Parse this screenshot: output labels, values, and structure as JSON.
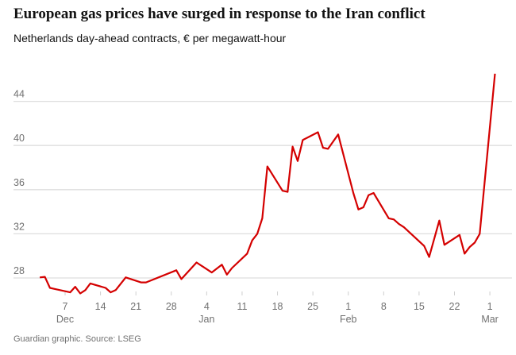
{
  "title": "European gas prices have surged in response to the Iran conflict",
  "subtitle": "Netherlands day-ahead contracts, € per megawatt-hour",
  "footer": "Guardian graphic. Source: LSEG",
  "colors": {
    "line": "#d40000",
    "grid": "#dedede",
    "tick_text": "#707070"
  },
  "chart_data": {
    "type": "line",
    "title": "European gas prices have surged in response to the Iran conflict",
    "subtitle": "Netherlands day-ahead contracts, € per megawatt-hour",
    "xlabel": "",
    "ylabel": "",
    "ylim": [
      26,
      46.5
    ],
    "y_ticks": [
      28,
      32,
      36,
      40,
      44
    ],
    "x_ticks": [
      {
        "date": "Dec 7",
        "label": "7",
        "month": "Dec"
      },
      {
        "date": "Dec 14",
        "label": "14",
        "month": ""
      },
      {
        "date": "Dec 21",
        "label": "21",
        "month": ""
      },
      {
        "date": "Dec 28",
        "label": "28",
        "month": ""
      },
      {
        "date": "Jan 4",
        "label": "4",
        "month": "Jan"
      },
      {
        "date": "Jan 11",
        "label": "11",
        "month": ""
      },
      {
        "date": "Jan 18",
        "label": "18",
        "month": ""
      },
      {
        "date": "Jan 25",
        "label": "25",
        "month": ""
      },
      {
        "date": "Feb 1",
        "label": "1",
        "month": "Feb"
      },
      {
        "date": "Feb 8",
        "label": "8",
        "month": ""
      },
      {
        "date": "Feb 15",
        "label": "15",
        "month": ""
      },
      {
        "date": "Feb 22",
        "label": "22",
        "month": ""
      },
      {
        "date": "Mar 1",
        "label": "1",
        "month": "Mar"
      }
    ],
    "grid": true,
    "series": [
      {
        "x": [
          "Dec 2",
          "Dec 3",
          "Dec 4",
          "Dec 5",
          "Dec 8",
          "Dec 9",
          "Dec 10",
          "Dec 11",
          "Dec 12",
          "Dec 15",
          "Dec 16",
          "Dec 17",
          "Dec 19",
          "Dec 22",
          "Dec 23",
          "Dec 29",
          "Dec 30",
          "Jan 2",
          "Jan 5",
          "Jan 7",
          "Jan 8",
          "Jan 9",
          "Jan 12",
          "Jan 13",
          "Jan 14",
          "Jan 15",
          "Jan 16",
          "Jan 19",
          "Jan 20",
          "Jan 21",
          "Jan 22",
          "Jan 23",
          "Jan 26",
          "Jan 27",
          "Jan 28",
          "Jan 30",
          "Feb 2",
          "Feb 3",
          "Feb 4",
          "Feb 5",
          "Feb 6",
          "Feb 9",
          "Feb 10",
          "Feb 11",
          "Feb 12",
          "Feb 16",
          "Feb 17",
          "Feb 19",
          "Feb 20",
          "Feb 23",
          "Feb 24",
          "Feb 25",
          "Feb 26",
          "Feb 27",
          "Mar 2"
        ],
        "y": [
          28.05,
          28.1,
          27.1,
          27.0,
          26.7,
          27.2,
          26.6,
          26.9,
          27.5,
          27.1,
          26.7,
          26.9,
          28.05,
          27.6,
          27.6,
          28.7,
          27.9,
          29.4,
          28.5,
          29.2,
          28.3,
          28.9,
          30.2,
          31.4,
          32.0,
          33.4,
          38.1,
          35.9,
          35.8,
          39.9,
          38.6,
          40.5,
          41.2,
          39.8,
          39.7,
          41.0,
          35.7,
          34.2,
          34.4,
          35.5,
          35.7,
          33.4,
          33.3,
          32.9,
          32.6,
          30.9,
          29.9,
          33.2,
          31.0,
          31.9,
          30.2,
          30.8,
          31.2,
          32.0,
          46.5
        ]
      }
    ]
  }
}
